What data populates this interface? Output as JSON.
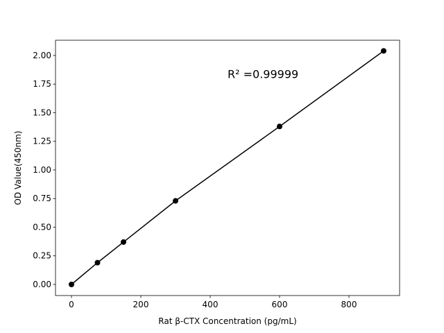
{
  "chart_data": {
    "type": "line",
    "title": "",
    "xlabel": "Rat β-CTX Concentration (pg/mL)",
    "ylabel": "OD Value(450nm)",
    "x": [
      0,
      75,
      150,
      300,
      600,
      900
    ],
    "series": [
      {
        "values": [
          0.0,
          0.19,
          0.37,
          0.73,
          1.38,
          2.04
        ],
        "color": "#000000",
        "marker": "circle"
      }
    ],
    "xlim": [
      -46,
      946
    ],
    "ylim": [
      -0.097,
      2.133
    ],
    "xticks": [
      0,
      200,
      400,
      600,
      800
    ],
    "xtick_labels": [
      "0",
      "200",
      "400",
      "600",
      "800"
    ],
    "yticks": [
      0,
      0.25,
      0.5,
      0.75,
      1.0,
      1.25,
      1.5,
      1.75,
      2.0
    ],
    "ytick_labels": [
      "0.00",
      "0.25",
      "0.50",
      "0.75",
      "1.00",
      "1.25",
      "1.50",
      "1.75",
      "2.00"
    ],
    "annotation": {
      "text": "R² =0.99999",
      "x": 450,
      "y": 1.84
    },
    "grid": false
  }
}
